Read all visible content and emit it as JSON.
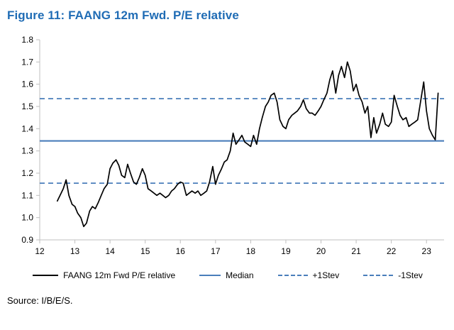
{
  "title": "Figure 11: FAANG 12m Fwd. P/E relative",
  "source": "Source: I/B/E/S.",
  "colors": {
    "title": "#1f6cb5",
    "series_line": "#000000",
    "reference_lines": "#4a7ebb",
    "axis": "#bfbfbf"
  },
  "legend": [
    {
      "label": "FAANG 12m Fwd P/E relative",
      "style": "solid-black"
    },
    {
      "label": "Median",
      "style": "solid-blue"
    },
    {
      "label": "+1Stev",
      "style": "dashed-blue"
    },
    {
      "label": "-1Stev",
      "style": "dashed-blue"
    }
  ],
  "chart_data": {
    "type": "line",
    "title": "FAANG 12m Fwd. P/E relative",
    "xlabel": "",
    "ylabel": "",
    "xlim": [
      12,
      23.5
    ],
    "ylim": [
      0.9,
      1.8
    ],
    "x_ticks": [
      12,
      13,
      14,
      15,
      16,
      17,
      18,
      19,
      20,
      21,
      22,
      23
    ],
    "y_ticks": [
      0.9,
      1.0,
      1.1,
      1.2,
      1.3,
      1.4,
      1.5,
      1.6,
      1.7,
      1.8
    ],
    "grid": false,
    "legend_position": "bottom",
    "reference_lines": {
      "median": 1.345,
      "plus_1_stdev": 1.535,
      "minus_1_stdev": 1.155
    },
    "series": [
      {
        "name": "FAANG 12m Fwd P/E relative",
        "points": [
          [
            12.5,
            1.075
          ],
          [
            12.58,
            1.1
          ],
          [
            12.67,
            1.13
          ],
          [
            12.75,
            1.17
          ],
          [
            12.83,
            1.1
          ],
          [
            12.92,
            1.06
          ],
          [
            13.0,
            1.05
          ],
          [
            13.08,
            1.02
          ],
          [
            13.17,
            1.0
          ],
          [
            13.25,
            0.96
          ],
          [
            13.33,
            0.975
          ],
          [
            13.42,
            1.03
          ],
          [
            13.5,
            1.05
          ],
          [
            13.58,
            1.04
          ],
          [
            13.67,
            1.07
          ],
          [
            13.75,
            1.1
          ],
          [
            13.83,
            1.13
          ],
          [
            13.92,
            1.15
          ],
          [
            14.0,
            1.22
          ],
          [
            14.08,
            1.245
          ],
          [
            14.17,
            1.26
          ],
          [
            14.25,
            1.235
          ],
          [
            14.33,
            1.19
          ],
          [
            14.42,
            1.18
          ],
          [
            14.5,
            1.24
          ],
          [
            14.58,
            1.2
          ],
          [
            14.67,
            1.16
          ],
          [
            14.75,
            1.15
          ],
          [
            14.83,
            1.18
          ],
          [
            14.92,
            1.22
          ],
          [
            15.0,
            1.19
          ],
          [
            15.08,
            1.13
          ],
          [
            15.17,
            1.12
          ],
          [
            15.25,
            1.11
          ],
          [
            15.33,
            1.1
          ],
          [
            15.42,
            1.11
          ],
          [
            15.5,
            1.1
          ],
          [
            15.58,
            1.09
          ],
          [
            15.67,
            1.1
          ],
          [
            15.75,
            1.12
          ],
          [
            15.83,
            1.13
          ],
          [
            15.92,
            1.15
          ],
          [
            16.0,
            1.16
          ],
          [
            16.08,
            1.155
          ],
          [
            16.17,
            1.1
          ],
          [
            16.25,
            1.11
          ],
          [
            16.33,
            1.12
          ],
          [
            16.42,
            1.11
          ],
          [
            16.5,
            1.12
          ],
          [
            16.58,
            1.1
          ],
          [
            16.67,
            1.11
          ],
          [
            16.75,
            1.12
          ],
          [
            16.83,
            1.16
          ],
          [
            16.92,
            1.23
          ],
          [
            17.0,
            1.15
          ],
          [
            17.08,
            1.19
          ],
          [
            17.17,
            1.22
          ],
          [
            17.25,
            1.25
          ],
          [
            17.33,
            1.26
          ],
          [
            17.42,
            1.3
          ],
          [
            17.5,
            1.38
          ],
          [
            17.58,
            1.33
          ],
          [
            17.67,
            1.35
          ],
          [
            17.75,
            1.37
          ],
          [
            17.83,
            1.34
          ],
          [
            17.92,
            1.33
          ],
          [
            18.0,
            1.32
          ],
          [
            18.08,
            1.37
          ],
          [
            18.17,
            1.33
          ],
          [
            18.25,
            1.4
          ],
          [
            18.33,
            1.45
          ],
          [
            18.42,
            1.5
          ],
          [
            18.5,
            1.52
          ],
          [
            18.58,
            1.55
          ],
          [
            18.67,
            1.56
          ],
          [
            18.75,
            1.52
          ],
          [
            18.83,
            1.44
          ],
          [
            18.92,
            1.41
          ],
          [
            19.0,
            1.4
          ],
          [
            19.08,
            1.44
          ],
          [
            19.17,
            1.46
          ],
          [
            19.25,
            1.47
          ],
          [
            19.33,
            1.48
          ],
          [
            19.42,
            1.5
          ],
          [
            19.5,
            1.53
          ],
          [
            19.58,
            1.49
          ],
          [
            19.67,
            1.47
          ],
          [
            19.75,
            1.47
          ],
          [
            19.83,
            1.46
          ],
          [
            19.92,
            1.48
          ],
          [
            20.0,
            1.5
          ],
          [
            20.08,
            1.53
          ],
          [
            20.17,
            1.56
          ],
          [
            20.25,
            1.62
          ],
          [
            20.33,
            1.66
          ],
          [
            20.42,
            1.56
          ],
          [
            20.5,
            1.64
          ],
          [
            20.58,
            1.68
          ],
          [
            20.67,
            1.63
          ],
          [
            20.75,
            1.7
          ],
          [
            20.83,
            1.66
          ],
          [
            20.92,
            1.57
          ],
          [
            21.0,
            1.6
          ],
          [
            21.08,
            1.55
          ],
          [
            21.17,
            1.52
          ],
          [
            21.25,
            1.47
          ],
          [
            21.33,
            1.5
          ],
          [
            21.42,
            1.36
          ],
          [
            21.5,
            1.45
          ],
          [
            21.58,
            1.38
          ],
          [
            21.67,
            1.42
          ],
          [
            21.75,
            1.47
          ],
          [
            21.83,
            1.42
          ],
          [
            21.92,
            1.41
          ],
          [
            22.0,
            1.43
          ],
          [
            22.08,
            1.55
          ],
          [
            22.17,
            1.5
          ],
          [
            22.25,
            1.46
          ],
          [
            22.33,
            1.44
          ],
          [
            22.42,
            1.45
          ],
          [
            22.5,
            1.41
          ],
          [
            22.58,
            1.42
          ],
          [
            22.67,
            1.43
          ],
          [
            22.75,
            1.44
          ],
          [
            22.83,
            1.52
          ],
          [
            22.92,
            1.61
          ],
          [
            23.0,
            1.48
          ],
          [
            23.08,
            1.4
          ],
          [
            23.17,
            1.37
          ],
          [
            23.25,
            1.35
          ],
          [
            23.33,
            1.56
          ]
        ]
      }
    ]
  }
}
